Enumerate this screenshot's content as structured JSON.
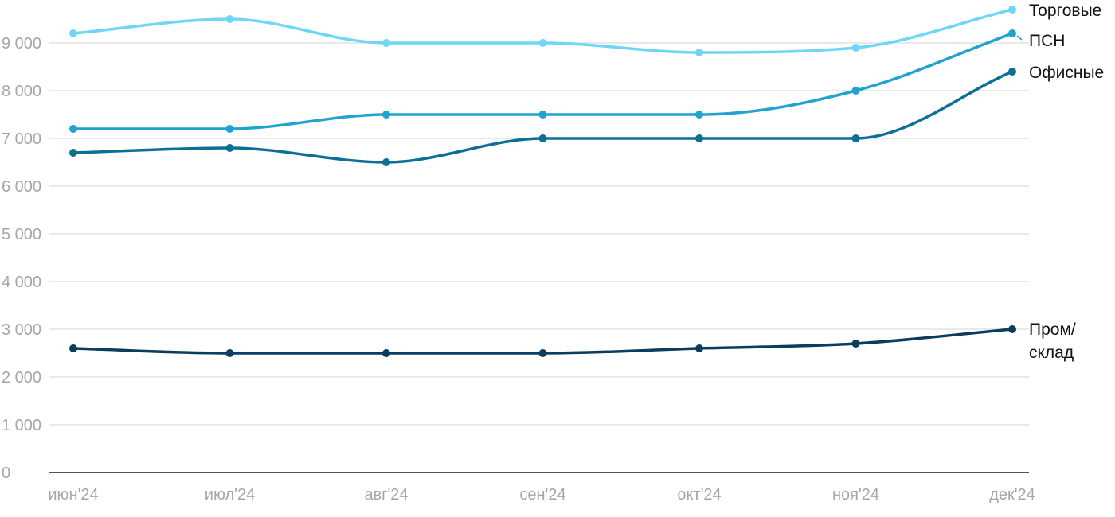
{
  "chart_data": {
    "type": "line",
    "categories": [
      "июн'24",
      "июл'24",
      "авг'24",
      "сен'24",
      "окт'24",
      "ноя'24",
      "дек'24"
    ],
    "ylim": [
      0,
      9000
    ],
    "yticks": [
      0,
      1000,
      2000,
      3000,
      4000,
      5000,
      6000,
      7000,
      8000,
      9000
    ],
    "ytick_labels": [
      "0",
      "1 000",
      "2 000",
      "3 000",
      "4 000",
      "5 000",
      "6 000",
      "7 000",
      "8 000",
      "9 000"
    ],
    "grid": true,
    "legend": "labels at right end of each line",
    "series": [
      {
        "name": "Торговые",
        "label_lines": [
          "Торговые"
        ],
        "color": "#6fd6f7",
        "values": [
          9200,
          9500,
          9000,
          9000,
          8800,
          8900,
          9700
        ]
      },
      {
        "name": "ПСН",
        "label_lines": [
          "ПСН"
        ],
        "color": "#1fa3cf",
        "values": [
          7200,
          7200,
          7500,
          7500,
          7500,
          8000,
          9200
        ]
      },
      {
        "name": "Офисные",
        "label_lines": [
          "Офисные"
        ],
        "color": "#0d6f96",
        "values": [
          6700,
          6800,
          6500,
          7000,
          7000,
          7000,
          8400
        ]
      },
      {
        "name": "Пром/склад",
        "label_lines": [
          "Пром/",
          "склад"
        ],
        "color": "#0b3d5e",
        "values": [
          2600,
          2500,
          2500,
          2500,
          2600,
          2700,
          3000
        ]
      }
    ]
  }
}
